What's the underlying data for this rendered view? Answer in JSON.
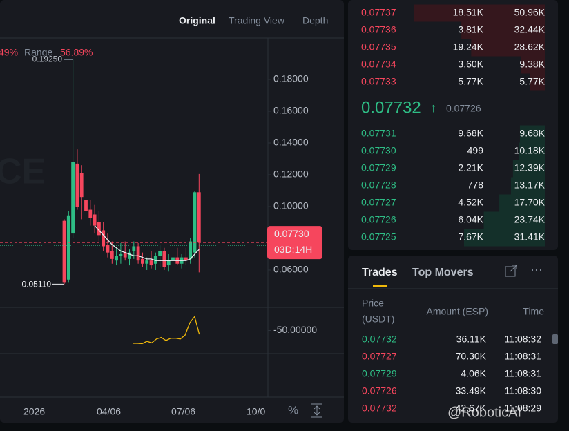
{
  "tabs": [
    "Original",
    "Trading View",
    "Depth"
  ],
  "range_bar": {
    "change": "49%",
    "label": "Range",
    "value": "56.89%"
  },
  "chart_watermark": "CE",
  "chart_data": {
    "type": "candlestick",
    "candles": {
      "open": [
        0.091,
        0.054,
        0.083,
        0.127,
        0.121,
        0.104,
        0.098,
        0.095,
        0.09,
        0.085,
        0.076,
        0.072,
        0.066,
        0.069,
        0.071,
        0.067,
        0.072,
        0.075,
        0.067,
        0.064,
        0.066,
        0.064,
        0.069,
        0.072,
        0.063,
        0.066,
        0.068,
        0.064,
        0.068,
        0.067,
        0.071,
        0.109
      ],
      "high": [
        0.092,
        0.097,
        0.1925,
        0.136,
        0.126,
        0.112,
        0.104,
        0.101,
        0.097,
        0.09,
        0.083,
        0.078,
        0.074,
        0.077,
        0.078,
        0.073,
        0.078,
        0.077,
        0.071,
        0.068,
        0.072,
        0.071,
        0.076,
        0.074,
        0.07,
        0.071,
        0.074,
        0.07,
        0.074,
        0.08,
        0.11,
        0.1205
      ],
      "low": [
        0.0511,
        0.052,
        0.08,
        0.098,
        0.092,
        0.094,
        0.088,
        0.083,
        0.078,
        0.072,
        0.068,
        0.064,
        0.063,
        0.064,
        0.066,
        0.063,
        0.067,
        0.064,
        0.062,
        0.06,
        0.061,
        0.06,
        0.062,
        0.06,
        0.059,
        0.062,
        0.063,
        0.061,
        0.063,
        0.064,
        0.068,
        0.0585
      ],
      "close": [
        0.052,
        0.094,
        0.128,
        0.1,
        0.106,
        0.097,
        0.093,
        0.088,
        0.082,
        0.075,
        0.071,
        0.067,
        0.069,
        0.07,
        0.068,
        0.071,
        0.075,
        0.066,
        0.064,
        0.066,
        0.063,
        0.069,
        0.072,
        0.062,
        0.066,
        0.068,
        0.064,
        0.068,
        0.066,
        0.078,
        0.109,
        0.0773
      ]
    },
    "ma": [
      null,
      null,
      null,
      null,
      null,
      null,
      null,
      0.088,
      0.085,
      0.082,
      0.079,
      0.076,
      0.074,
      0.072,
      0.071,
      0.07,
      0.069,
      0.069,
      0.068,
      0.067,
      0.067,
      0.066,
      0.066,
      0.066,
      0.066,
      0.066,
      0.066,
      0.066,
      0.066,
      0.067,
      0.07,
      0.073
    ],
    "up_color": "#2ebd85",
    "down_color": "#f6465d",
    "ma_color": "#eaecef",
    "ylim": [
      0.0365,
      0.2061
    ],
    "yticks": [
      {
        "value": 0.18,
        "label": "0.18000"
      },
      {
        "value": 0.16,
        "label": "0.16000"
      },
      {
        "value": 0.14,
        "label": "0.14000"
      },
      {
        "value": 0.12,
        "label": "0.12000"
      },
      {
        "value": 0.1,
        "label": "0.10000"
      },
      {
        "value": 0.06,
        "label": "0.06000"
      }
    ],
    "high_marker": {
      "value": 0.1925,
      "label": "0.19250"
    },
    "low_marker": {
      "value": 0.0511,
      "label": "0.05110"
    },
    "current_price": {
      "value": 0.0773,
      "label": "0.07730",
      "countdown": "03D:14H"
    },
    "x_labels": [
      "2026",
      "04/06",
      "07/06",
      "10/0"
    ],
    "indicator": {
      "color": "#f0b90b",
      "ylim": [
        -80,
        -20
      ],
      "yticks": [
        {
          "value": -50,
          "label": "-50.00000"
        }
      ],
      "values": [
        null,
        null,
        null,
        null,
        null,
        null,
        null,
        null,
        null,
        null,
        null,
        null,
        null,
        null,
        null,
        null,
        null,
        -66.6,
        -66.6,
        -67,
        -64,
        -66,
        -61,
        -59,
        -63,
        -60,
        -60,
        -61,
        -56,
        -40,
        -32,
        -55
      ]
    },
    "tools": [
      "%"
    ]
  },
  "order_book": {
    "asks": [
      {
        "price": "0.07737",
        "amount": "18.51K",
        "total": {
          "value": 50960,
          "label": "50.96K"
        }
      },
      {
        "price": "0.07736",
        "amount": "3.81K",
        "total": {
          "value": 32440,
          "label": "32.44K"
        }
      },
      {
        "price": "0.07735",
        "amount": "19.24K",
        "total": {
          "value": 28620,
          "label": "28.62K"
        }
      },
      {
        "price": "0.07734",
        "amount": "3.60K",
        "total": {
          "value": 9380,
          "label": "9.38K"
        }
      },
      {
        "price": "0.07733",
        "amount": "5.77K",
        "total": {
          "value": 5770,
          "label": "5.77K"
        }
      }
    ],
    "mid": {
      "price": "0.07732",
      "arrow": "↑",
      "reference": "0.07726"
    },
    "bids": [
      {
        "price": "0.07731",
        "amount": "9.68K",
        "total": {
          "value": 9680,
          "label": "9.68K"
        }
      },
      {
        "price": "0.07730",
        "amount": "499",
        "total": {
          "value": 10180,
          "label": "10.18K"
        }
      },
      {
        "price": "0.07729",
        "amount": "2.21K",
        "total": {
          "value": 12390,
          "label": "12.39K"
        }
      },
      {
        "price": "0.07728",
        "amount": "778",
        "total": {
          "value": 13170,
          "label": "13.17K"
        }
      },
      {
        "price": "0.07727",
        "amount": "4.52K",
        "total": {
          "value": 17700,
          "label": "17.70K"
        }
      },
      {
        "price": "0.07726",
        "amount": "6.04K",
        "total": {
          "value": 23740,
          "label": "23.74K"
        }
      },
      {
        "price": "0.07725",
        "amount": "7.67K",
        "total": {
          "value": 31410,
          "label": "31.41K"
        }
      }
    ]
  },
  "trades": {
    "tabs": [
      "Trades",
      "Top Movers"
    ],
    "headers": {
      "price": [
        "Price",
        "(USDT)"
      ],
      "amount": "Amount (ESP)",
      "time": "Time"
    },
    "rows": [
      {
        "price": "0.07732",
        "color": "#2ebd85",
        "amount": "36.11K",
        "time": "11:08:32"
      },
      {
        "price": "0.07727",
        "color": "#f6465d",
        "amount": "70.30K",
        "time": "11:08:31"
      },
      {
        "price": "0.07729",
        "color": "#2ebd85",
        "amount": "4.06K",
        "time": "11:08:31"
      },
      {
        "price": "0.07726",
        "color": "#f6465d",
        "amount": "33.49K",
        "time": "11:08:30"
      },
      {
        "price": "0.07732",
        "color": "#f6465d",
        "amount": "42.67K",
        "time": "11:08:29"
      }
    ]
  },
  "watermark": "@RoboticAI"
}
